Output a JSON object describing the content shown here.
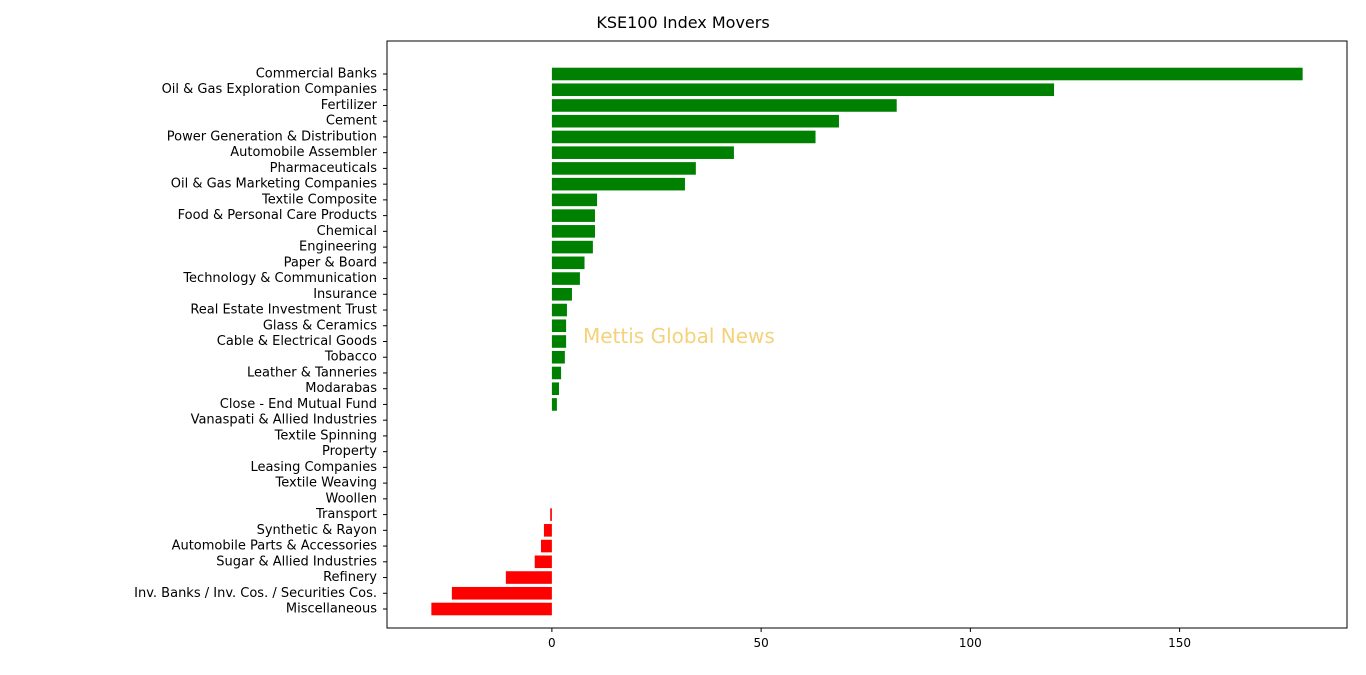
{
  "chart_data": {
    "type": "bar",
    "orientation": "horizontal",
    "title": "KSE100 Index Movers",
    "xlabel": "",
    "ylabel": "",
    "xlim": [
      -39.4,
      190
    ],
    "xticks": [
      0,
      50,
      100,
      150
    ],
    "grid": false,
    "legend": "none",
    "watermark": "Mettis Global News",
    "positive_color": "#008000",
    "negative_color": "#ff0000",
    "categories": [
      "Commercial Banks",
      "Oil & Gas Exploration Companies",
      "Fertilizer",
      "Cement",
      "Power Generation & Distribution",
      "Automobile Assembler",
      "Pharmaceuticals",
      "Oil & Gas Marketing Companies",
      "Textile Composite",
      "Food & Personal Care Products",
      "Chemical",
      "Engineering",
      "Paper & Board",
      "Technology & Communication",
      "Insurance",
      "Real Estate Investment Trust",
      "Glass & Ceramics",
      "Cable & Electrical Goods",
      "Tobacco",
      "Leather & Tanneries",
      "Modarabas",
      "Close - End Mutual Fund",
      "Vanaspati & Allied Industries",
      "Textile Spinning",
      "Property",
      "Leasing Companies",
      "Textile Weaving",
      "Woollen",
      "Transport",
      "Synthetic & Rayon",
      "Automobile Parts & Accessories",
      "Sugar & Allied Industries",
      "Refinery",
      "Inv. Banks / Inv. Cos. / Securities Cos.",
      "Miscellaneous"
    ],
    "values": [
      179.4,
      120.0,
      82.4,
      68.6,
      63.0,
      43.5,
      34.4,
      31.8,
      10.8,
      10.3,
      10.3,
      9.8,
      7.8,
      6.7,
      4.8,
      3.6,
      3.4,
      3.4,
      3.1,
      2.2,
      1.7,
      1.2,
      0,
      0,
      0,
      0,
      0,
      0,
      -0.4,
      -1.9,
      -2.6,
      -4.1,
      -11.0,
      -23.9,
      -28.8
    ]
  }
}
